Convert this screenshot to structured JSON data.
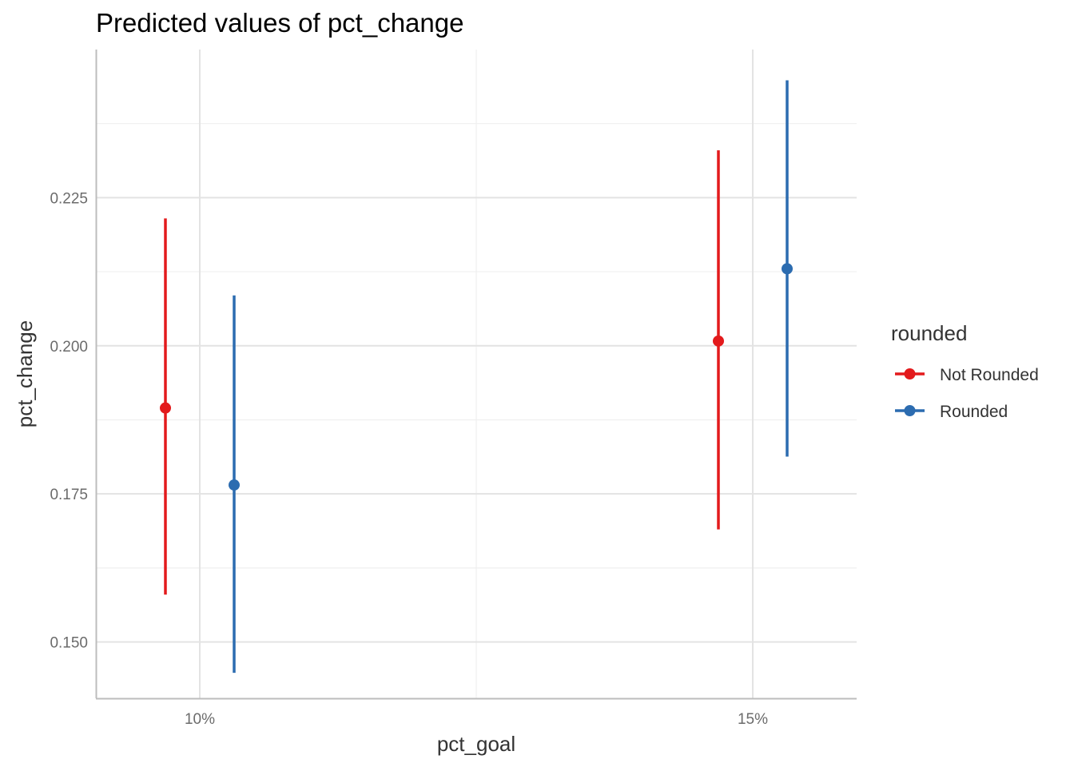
{
  "chart_data": {
    "type": "scatter",
    "title": "Predicted values of pct_change",
    "xlabel": "pct_goal",
    "ylabel": "pct_change",
    "categories": [
      "10%",
      "15%"
    ],
    "x_tick_labels": [
      "10%",
      "15%"
    ],
    "y_tick_labels": [
      "0.150",
      "0.175",
      "0.200",
      "0.225"
    ],
    "y_ticks": [
      0.15,
      0.175,
      0.2,
      0.225
    ],
    "ylim": [
      0.1405,
      0.25
    ],
    "grid": true,
    "legend": {
      "title": "rounded",
      "position": "right"
    },
    "series": [
      {
        "name": "Not Rounded",
        "color": "#e31a1c",
        "points": [
          {
            "x": "10%",
            "y": 0.1895,
            "low": 0.158,
            "high": 0.2215
          },
          {
            "x": "15%",
            "y": 0.2008,
            "low": 0.169,
            "high": 0.233
          }
        ]
      },
      {
        "name": "Rounded",
        "color": "#2c6cb0",
        "points": [
          {
            "x": "10%",
            "y": 0.1765,
            "low": 0.1448,
            "high": 0.2085
          },
          {
            "x": "15%",
            "y": 0.213,
            "low": 0.1813,
            "high": 0.2448
          }
        ]
      }
    ]
  }
}
